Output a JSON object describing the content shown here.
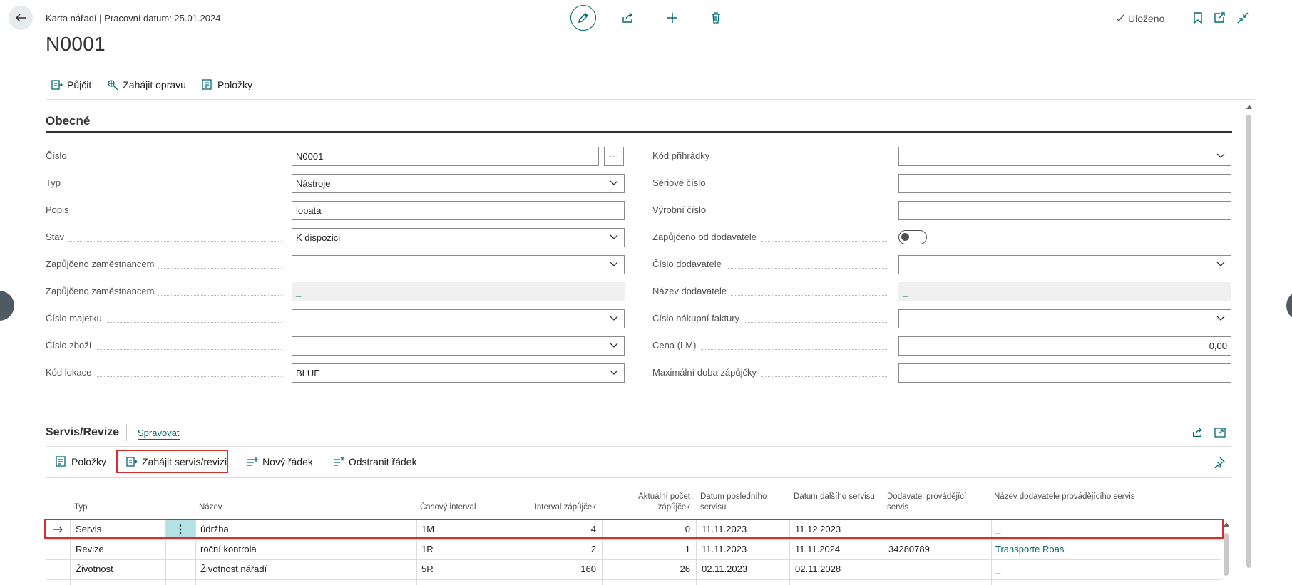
{
  "header": {
    "breadcrumb": "Karta nářadí | Pracovní datum: 25.01.2024",
    "title": "N0001",
    "saved_label": "Uloženo"
  },
  "actions": {
    "borrow": "Půjčit",
    "start_repair": "Zahájit opravu",
    "entries": "Položky"
  },
  "general": {
    "title": "Obecné",
    "left": [
      {
        "label": "Číslo",
        "value": "N0001",
        "kind": "text-assist"
      },
      {
        "label": "Typ",
        "value": "Nástroje",
        "kind": "select"
      },
      {
        "label": "Popis",
        "value": "lopata",
        "kind": "text"
      },
      {
        "label": "Stav",
        "value": "K dispozici",
        "kind": "select"
      },
      {
        "label": "Zapůjčeno zaměstnancem",
        "value": "",
        "kind": "select"
      },
      {
        "label": "Zapůjčeno zaměstnancem",
        "value": "_",
        "kind": "readonly"
      },
      {
        "label": "Číslo majetku",
        "value": "",
        "kind": "select"
      },
      {
        "label": "Číslo zboží",
        "value": "",
        "kind": "select"
      },
      {
        "label": "Kód lokace",
        "value": "BLUE",
        "kind": "select"
      }
    ],
    "right": [
      {
        "label": "Kód přihrádky",
        "value": "",
        "kind": "select"
      },
      {
        "label": "Sériové číslo",
        "value": "",
        "kind": "text"
      },
      {
        "label": "Výrobní číslo",
        "value": "",
        "kind": "text"
      },
      {
        "label": "Zapůjčeno od dodavatele",
        "value": "off",
        "kind": "toggle"
      },
      {
        "label": "Číslo dodavatele",
        "value": "",
        "kind": "select"
      },
      {
        "label": "Název dodavatele",
        "value": "_",
        "kind": "readonly"
      },
      {
        "label": "Číslo nákupní faktury",
        "value": "",
        "kind": "select"
      },
      {
        "label": "Cena (LM)",
        "value": "0,00",
        "kind": "number"
      },
      {
        "label": "Maximální doba zápůjčky",
        "value": "",
        "kind": "text"
      }
    ]
  },
  "service": {
    "title": "Servis/Revize",
    "manage_tab": "Spravovat",
    "actions": {
      "entries": "Položky",
      "start_service": "Zahájit servis/revizi",
      "new_line": "Nový řádek",
      "delete_line": "Odstranit řádek"
    },
    "columns": [
      {
        "label": "Typ"
      },
      {
        "label": "Název"
      },
      {
        "label": "Časový interval"
      },
      {
        "label": "Interval zápůjček"
      },
      {
        "label": "Aktuální počet zápůjček"
      },
      {
        "label": "Datum posledního servisu"
      },
      {
        "label": "Datum dalšího servisu"
      },
      {
        "label": "Dodavatel provádějící servis"
      },
      {
        "label": "Název dodavatele provádějícího servis"
      }
    ],
    "rows": [
      {
        "type": "Servis",
        "name": "údržba",
        "interval": "1M",
        "loan_interval": "4",
        "loan_count": "0",
        "last": "11.11.2023",
        "next": "11.12.2023",
        "vendor": "",
        "vendor_name": "_",
        "selected": true
      },
      {
        "type": "Revize",
        "name": "roční kontrola",
        "interval": "1R",
        "loan_interval": "2",
        "loan_count": "1",
        "last": "11.11.2023",
        "next": "11.11.2024",
        "vendor": "34280789",
        "vendor_name": "Transporte Roas",
        "selected": false
      },
      {
        "type": "Životnost",
        "name": "Životnost nářadí",
        "interval": "5R",
        "loan_interval": "160",
        "loan_count": "26",
        "last": "02.11.2023",
        "next": "02.11.2028",
        "vendor": "",
        "vendor_name": "_",
        "selected": false
      }
    ]
  },
  "colors": {
    "accent": "#00696e",
    "highlight": "#d32f2f",
    "text": "#212121"
  }
}
